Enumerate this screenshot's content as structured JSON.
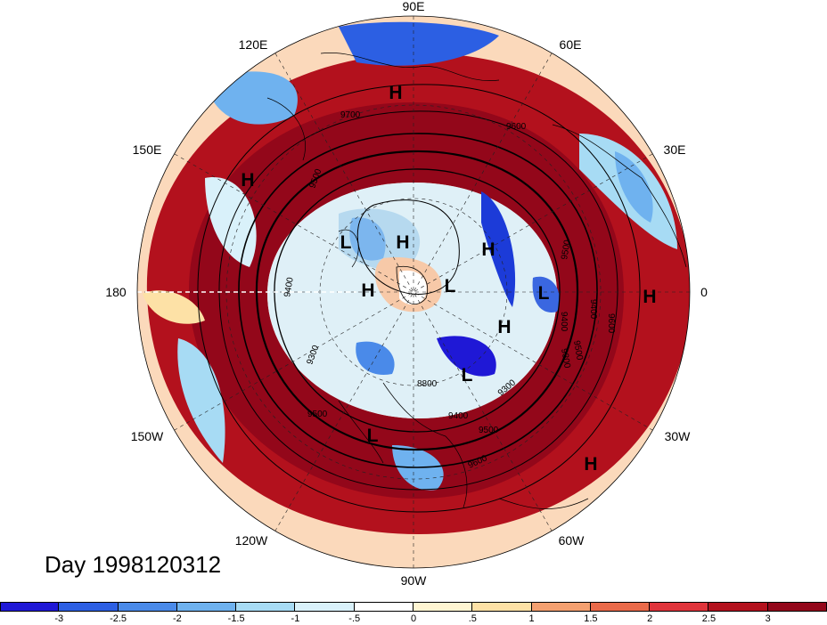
{
  "map": {
    "projection": "north-polar-stereographic",
    "longitude_labels": [
      "90E",
      "60E",
      "30E",
      "0",
      "30W",
      "60W",
      "90W",
      "120W",
      "150W",
      "180",
      "150E",
      "120E"
    ],
    "high_low_markers": [
      "H",
      "H",
      "H",
      "L",
      "H",
      "H",
      "L",
      "H",
      "L",
      "L",
      "H",
      "L",
      "H",
      "H"
    ],
    "contour_labels": [
      "9700",
      "9600",
      "9500",
      "9400",
      "9500",
      "9600",
      "9400",
      "9300",
      "9500",
      "9400",
      "9300",
      "9300",
      "8800",
      "9400",
      "9500",
      "9600",
      "9500"
    ],
    "colors": {
      "strong_positive": "#a50f15",
      "positive": "#de2d26",
      "weak_positive": "#f4a582",
      "near_zero": "#fff5dc",
      "weak_negative": "#c8e8f8",
      "negative": "#5aa2e6",
      "strong_negative": "#1c3bd8"
    }
  },
  "title": {
    "day_label": "Day 1998120312"
  },
  "colorbar": {
    "tick_labels": [
      "-3",
      "-2.5",
      "-2",
      "-1.5",
      "-1",
      "-.5",
      "0",
      ".5",
      "1",
      "1.5",
      "2",
      "2.5",
      "3"
    ],
    "colors": [
      "#1f18d6",
      "#2c5fe3",
      "#4a8ae9",
      "#6fb2ef",
      "#a7dbf4",
      "#d9f1fa",
      "#ffffff",
      "#fff5d2",
      "#fde1a6",
      "#f4a070",
      "#ea6a4a",
      "#e0343b",
      "#b3111d",
      "#93071a"
    ]
  }
}
